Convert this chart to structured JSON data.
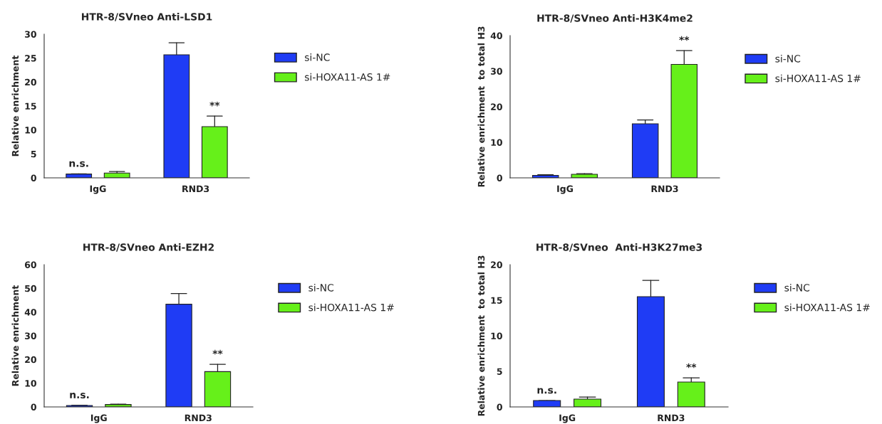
{
  "chart_data": [
    {
      "type": "bar",
      "title": "HTR-8/SVneo Anti-LSD1",
      "ylabel": "Relative enrichment",
      "categories": [
        "IgG",
        "RND3"
      ],
      "series": [
        {
          "name": "si-NC",
          "color": "#1f3cf5",
          "values": [
            0.8,
            25.7
          ],
          "errors": [
            [
              0.8,
              0.85
            ],
            [
              25.7,
              28.2
            ]
          ]
        },
        {
          "name": "si-HOXA11-AS 1#",
          "color": "#66f01a",
          "values": [
            1.0,
            10.7
          ],
          "errors": [
            [
              1.0,
              1.3
            ],
            [
              10.7,
              12.9
            ]
          ]
        }
      ],
      "ylim": [
        0,
        30
      ],
      "yticks": [
        0,
        5,
        10,
        15,
        20,
        25,
        30
      ],
      "legend": "right",
      "annotations": [
        "n.s.",
        "**"
      ]
    },
    {
      "type": "bar",
      "title": "HTR-8/SVneo Anti-H3K4me2",
      "ylabel": "Relative enrichment  to total H3",
      "categories": [
        "IgG",
        "RND3"
      ],
      "series": [
        {
          "name": "si-NC",
          "color": "#1f3cf5",
          "values": [
            0.7,
            15.2
          ],
          "errors": [
            [
              0.7,
              0.9
            ],
            [
              15.2,
              16.3
            ]
          ]
        },
        {
          "name": "si-HOXA11-AS 1#",
          "color": "#66f01a",
          "values": [
            1.0,
            31.9
          ],
          "errors": [
            [
              1.0,
              1.2
            ],
            [
              31.9,
              35.8
            ]
          ]
        }
      ],
      "ylim": [
        0,
        40
      ],
      "yticks": [
        0,
        10,
        20,
        30,
        40
      ],
      "legend": "right",
      "annotations": [
        "**"
      ]
    },
    {
      "type": "bar",
      "title": "HTR-8/SVneo Anti-EZH2",
      "ylabel": "Relative enrichment",
      "categories": [
        "IgG",
        "RND3"
      ],
      "series": [
        {
          "name": "si-NC",
          "color": "#1f3cf5",
          "values": [
            0.6,
            43.3
          ],
          "errors": [
            [
              0.6,
              0.7
            ],
            [
              43.3,
              47.8
            ]
          ]
        },
        {
          "name": "si-HOXA11-AS 1#",
          "color": "#66f01a",
          "values": [
            1.0,
            14.9
          ],
          "errors": [
            [
              1.0,
              1.2
            ],
            [
              14.9,
              18.0
            ]
          ]
        }
      ],
      "ylim": [
        0,
        60
      ],
      "yticks": [
        0,
        10,
        20,
        30,
        40,
        50,
        60
      ],
      "legend": "right",
      "annotations": [
        "n.s.",
        "**"
      ]
    },
    {
      "type": "bar",
      "title": "HTR-8/SVneo  Anti-H3K27me3",
      "ylabel": "Relative enrichment  to total H3",
      "categories": [
        "IgG",
        "RND3"
      ],
      "series": [
        {
          "name": "si-NC",
          "color": "#1f3cf5",
          "values": [
            0.9,
            15.5
          ],
          "errors": [
            [
              0.9,
              0.9
            ],
            [
              15.5,
              17.8
            ]
          ]
        },
        {
          "name": "si-HOXA11-AS 1#",
          "color": "#66f01a",
          "values": [
            1.1,
            3.5
          ],
          "errors": [
            [
              1.1,
              1.4
            ],
            [
              3.5,
              4.1
            ]
          ]
        }
      ],
      "ylim": [
        0,
        20
      ],
      "yticks": [
        0,
        5,
        10,
        15,
        20
      ],
      "legend": "right",
      "annotations": [
        "n.s.",
        "**"
      ]
    }
  ]
}
